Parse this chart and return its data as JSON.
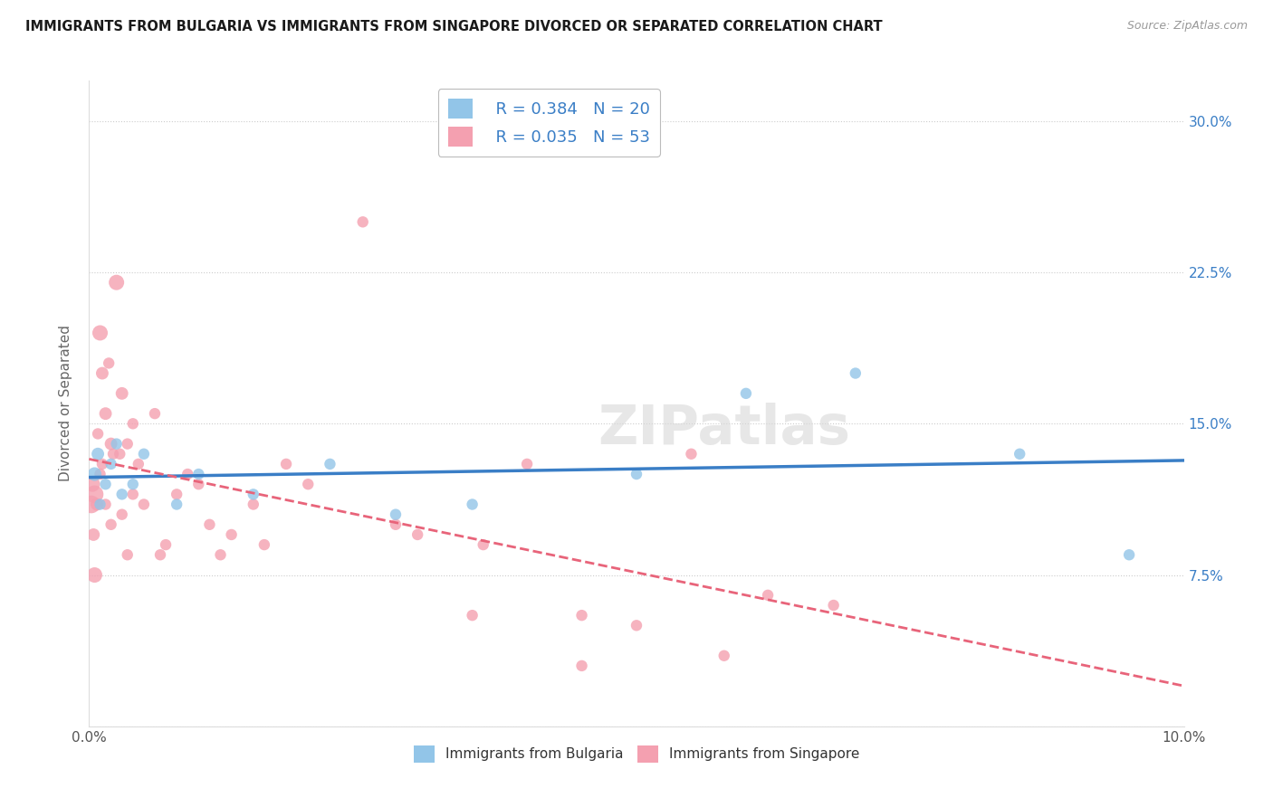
{
  "title": "IMMIGRANTS FROM BULGARIA VS IMMIGRANTS FROM SINGAPORE DIVORCED OR SEPARATED CORRELATION CHART",
  "source": "Source: ZipAtlas.com",
  "ylabel": "Divorced or Separated",
  "xlabel_bulgaria": "Immigrants from Bulgaria",
  "xlabel_singapore": "Immigrants from Singapore",
  "xlim": [
    0.0,
    10.0
  ],
  "ylim": [
    0.0,
    32.0
  ],
  "yticks": [
    0.0,
    7.5,
    15.0,
    22.5,
    30.0
  ],
  "ytick_labels": [
    "",
    "7.5%",
    "15.0%",
    "22.5%",
    "30.0%"
  ],
  "xtick_labels_left": [
    "0.0%",
    "",
    "",
    "",
    ""
  ],
  "xtick_labels_right": [
    "",
    "",
    "",
    "",
    "10.0%"
  ],
  "bulgaria_R": 0.384,
  "bulgaria_N": 20,
  "singapore_R": 0.035,
  "singapore_N": 53,
  "bulgaria_color": "#92C5E8",
  "singapore_color": "#F4A0B0",
  "trendline_bulgaria_color": "#3A7EC6",
  "trendline_singapore_color": "#E8647A",
  "watermark": "ZIPatlas",
  "background_color": "#FFFFFF",
  "bulgaria_x": [
    0.05,
    0.08,
    0.1,
    0.15,
    0.2,
    0.25,
    0.3,
    0.4,
    0.5,
    0.8,
    1.0,
    1.5,
    2.2,
    2.8,
    3.5,
    5.0,
    6.0,
    7.0,
    8.5,
    9.5
  ],
  "bulgaria_y": [
    12.5,
    13.5,
    11.0,
    12.0,
    13.0,
    14.0,
    11.5,
    12.0,
    13.5,
    11.0,
    12.5,
    11.5,
    13.0,
    10.5,
    11.0,
    12.5,
    16.5,
    17.5,
    13.5,
    8.5
  ],
  "singapore_x": [
    0.02,
    0.03,
    0.04,
    0.05,
    0.05,
    0.07,
    0.08,
    0.1,
    0.1,
    0.12,
    0.12,
    0.15,
    0.15,
    0.18,
    0.2,
    0.2,
    0.22,
    0.25,
    0.28,
    0.3,
    0.3,
    0.35,
    0.35,
    0.4,
    0.4,
    0.45,
    0.5,
    0.6,
    0.65,
    0.7,
    0.8,
    0.9,
    1.0,
    1.1,
    1.2,
    1.3,
    1.5,
    1.6,
    1.8,
    2.0,
    2.5,
    2.8,
    3.0,
    3.5,
    3.6,
    4.0,
    4.5,
    5.0,
    5.5,
    5.8,
    6.2,
    6.8,
    4.5
  ],
  "singapore_y": [
    11.0,
    12.0,
    9.5,
    11.5,
    7.5,
    11.0,
    14.5,
    19.5,
    12.5,
    17.5,
    13.0,
    15.5,
    11.0,
    18.0,
    14.0,
    10.0,
    13.5,
    22.0,
    13.5,
    16.5,
    10.5,
    14.0,
    8.5,
    15.0,
    11.5,
    13.0,
    11.0,
    15.5,
    8.5,
    9.0,
    11.5,
    12.5,
    12.0,
    10.0,
    8.5,
    9.5,
    11.0,
    9.0,
    13.0,
    12.0,
    25.0,
    10.0,
    9.5,
    5.5,
    9.0,
    13.0,
    5.5,
    5.0,
    13.5,
    3.5,
    6.5,
    6.0,
    3.0
  ],
  "bulgaria_sizes": [
    120,
    100,
    80,
    80,
    80,
    80,
    80,
    80,
    80,
    80,
    80,
    80,
    80,
    80,
    80,
    80,
    80,
    80,
    80,
    80
  ],
  "singapore_sizes": [
    200,
    150,
    100,
    200,
    150,
    100,
    80,
    150,
    80,
    100,
    80,
    100,
    80,
    80,
    100,
    80,
    80,
    150,
    80,
    100,
    80,
    80,
    80,
    80,
    80,
    80,
    80,
    80,
    80,
    80,
    80,
    80,
    80,
    80,
    80,
    80,
    80,
    80,
    80,
    80,
    80,
    80,
    80,
    80,
    80,
    80,
    80,
    80,
    80,
    80,
    80,
    80,
    80
  ]
}
